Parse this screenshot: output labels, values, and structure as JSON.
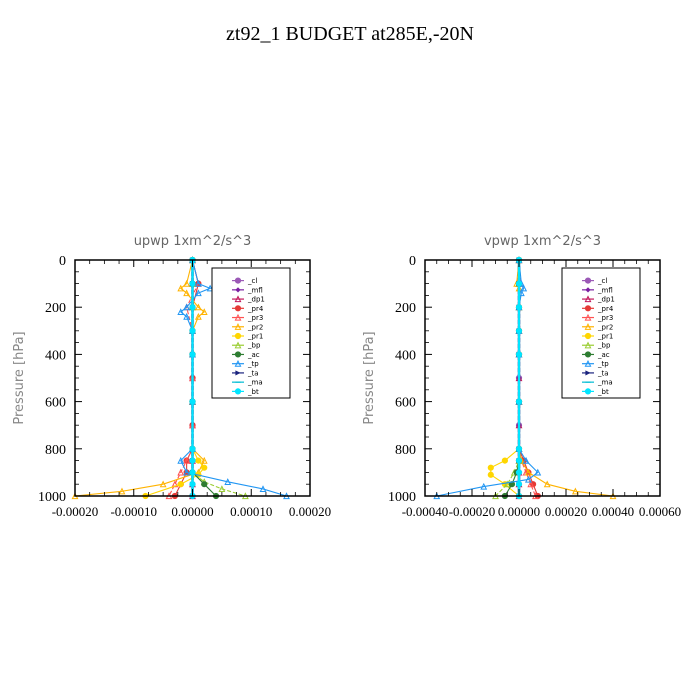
{
  "title": "zt92_1  BUDGET at285E,-20N",
  "legend_entries": [
    "_cl",
    "_mfl",
    "_dp1",
    "_pr4",
    "_pr3",
    "_pr2",
    "_pr1",
    "_bp",
    "_ac",
    "_tp",
    "_ta",
    "_ma",
    "_bt"
  ],
  "legend_colors": [
    "#9b59b6",
    "#7b1fa2",
    "#c2185b",
    "#e53935",
    "#ff5252",
    "#ffb300",
    "#ffd600",
    "#9acd32",
    "#2e7d32",
    "#2196f3",
    "#1a237e",
    "#00bcd4",
    "#00e5ff"
  ],
  "chart_data": [
    {
      "type": "line",
      "title": "upwp   1xm^2/s^3",
      "ylabel": "Pressure [hPa]",
      "xlabel": "",
      "xlim": [
        -0.0002,
        0.0002
      ],
      "ylim": [
        1000,
        0
      ],
      "xticks": [
        -0.0002,
        -0.0001,
        0.0,
        0.0001,
        0.0002
      ],
      "xtick_labels": [
        "-0.00020",
        "-0.00010",
        "0.00000",
        "0.00010",
        "0.00020"
      ],
      "yticks": [
        0,
        200,
        400,
        600,
        800,
        1000
      ],
      "ytick_labels": [
        "0",
        "200",
        "400",
        "600",
        "800",
        "1000"
      ],
      "legend_position": "top-right",
      "series": [
        {
          "name": "_cl",
          "p": [
            0,
            100,
            200,
            300,
            400,
            500,
            600,
            700,
            800,
            850,
            900,
            950,
            1000
          ],
          "values": [
            0,
            0,
            0,
            0,
            0,
            0,
            0,
            0,
            0,
            0,
            0,
            0,
            0
          ]
        },
        {
          "name": "_mfl",
          "p": [
            0,
            100,
            200,
            300,
            400,
            500,
            600,
            700,
            800,
            850,
            900,
            950,
            1000
          ],
          "values": [
            0,
            0,
            0,
            0,
            0,
            0,
            0,
            0,
            0,
            0,
            0,
            0,
            0
          ]
        },
        {
          "name": "_dp1",
          "p": [
            0,
            100,
            200,
            300,
            400,
            500,
            600,
            700,
            800,
            850,
            900,
            950,
            1000
          ],
          "values": [
            0,
            0,
            0,
            0,
            0,
            0,
            0,
            0,
            0,
            0,
            0,
            0,
            0
          ]
        },
        {
          "name": "_pr4",
          "p": [
            0,
            100,
            200,
            300,
            400,
            500,
            600,
            700,
            800,
            850,
            900,
            950,
            1000
          ],
          "values": [
            0,
            1e-05,
            0,
            0,
            0,
            0,
            0,
            0,
            0,
            -1e-05,
            -1e-05,
            -2e-05,
            -3e-05
          ]
        },
        {
          "name": "_pr3",
          "p": [
            0,
            100,
            200,
            300,
            400,
            500,
            600,
            700,
            800,
            850,
            900,
            950,
            1000
          ],
          "values": [
            0,
            1e-05,
            -1e-05,
            0,
            0,
            0,
            0,
            0,
            0,
            -1e-05,
            -2e-05,
            -3e-05,
            -4e-05
          ]
        },
        {
          "name": "_pr2",
          "p": [
            0,
            100,
            120,
            140,
            200,
            220,
            240,
            300,
            400,
            600,
            800,
            850,
            900,
            950,
            980,
            1000
          ],
          "values": [
            0,
            -1e-05,
            -2e-05,
            -1e-05,
            1e-05,
            2e-05,
            1e-05,
            0,
            0,
            0,
            0,
            2e-05,
            1e-05,
            -5e-05,
            -0.00012,
            -0.0002
          ]
        },
        {
          "name": "_pr1",
          "p": [
            0,
            100,
            200,
            300,
            400,
            600,
            800,
            850,
            880,
            910,
            950,
            1000
          ],
          "values": [
            0,
            0,
            0,
            0,
            0,
            0,
            0,
            1e-05,
            2e-05,
            1e-05,
            -2e-05,
            -8e-05
          ]
        },
        {
          "name": "_bp",
          "p": [
            0,
            100,
            200,
            300,
            400,
            600,
            800,
            900,
            940,
            970,
            1000
          ],
          "values": [
            0,
            0,
            0,
            0,
            0,
            0,
            0,
            0,
            2e-05,
            5e-05,
            9e-05
          ]
        },
        {
          "name": "_ac",
          "p": [
            0,
            100,
            200,
            300,
            400,
            600,
            800,
            900,
            950,
            1000
          ],
          "values": [
            0,
            0,
            0,
            0,
            0,
            0,
            0,
            0,
            2e-05,
            4e-05
          ]
        },
        {
          "name": "_tp",
          "p": [
            0,
            100,
            120,
            140,
            200,
            220,
            240,
            300,
            400,
            600,
            800,
            850,
            900,
            940,
            970,
            1000
          ],
          "values": [
            0,
            1e-05,
            3e-05,
            1e-05,
            -1e-05,
            -2e-05,
            -1e-05,
            0,
            0,
            0,
            0,
            -2e-05,
            -1e-05,
            6e-05,
            0.00012,
            0.00016
          ]
        },
        {
          "name": "_ta",
          "p": [
            0,
            100,
            200,
            300,
            400,
            600,
            800,
            850,
            900,
            950,
            1000
          ],
          "values": [
            0,
            0,
            0,
            0,
            0,
            0,
            0,
            0,
            0,
            0,
            0
          ]
        },
        {
          "name": "_ma",
          "p": [
            0,
            100,
            200,
            300,
            400,
            600,
            800,
            850,
            900,
            950,
            1000
          ],
          "values": [
            0,
            0,
            0,
            0,
            0,
            0,
            0,
            0,
            0,
            0,
            0
          ]
        },
        {
          "name": "_bt",
          "p": [
            0,
            100,
            200,
            300,
            400,
            600,
            800,
            850,
            900,
            950,
            1000
          ],
          "values": [
            0,
            0,
            0,
            0,
            0,
            0,
            0,
            0,
            0,
            0,
            0
          ]
        }
      ]
    },
    {
      "type": "line",
      "title": "vpwp   1xm^2/s^3",
      "ylabel": "Pressure [hPa]",
      "xlabel": "",
      "xlim": [
        -0.0004,
        0.0006
      ],
      "ylim": [
        1000,
        0
      ],
      "xticks": [
        -0.0004,
        -0.0002,
        0.0,
        0.0002,
        0.0004,
        0.0006
      ],
      "xtick_labels": [
        "-0.00040",
        "-0.00020",
        "0.00000",
        "0.00020",
        "0.00040",
        "0.00060"
      ],
      "yticks": [
        0,
        200,
        400,
        600,
        800,
        1000
      ],
      "ytick_labels": [
        "0",
        "200",
        "400",
        "600",
        "800",
        "1000"
      ],
      "legend_position": "top-right",
      "series": [
        {
          "name": "_cl",
          "p": [
            0,
            100,
            200,
            300,
            400,
            500,
            600,
            700,
            800,
            850,
            900,
            950,
            1000
          ],
          "values": [
            0,
            0,
            0,
            0,
            0,
            0,
            0,
            0,
            0,
            0,
            0,
            0,
            0
          ]
        },
        {
          "name": "_mfl",
          "p": [
            0,
            100,
            200,
            300,
            400,
            500,
            600,
            700,
            800,
            850,
            900,
            950,
            1000
          ],
          "values": [
            0,
            0,
            0,
            0,
            0,
            0,
            0,
            0,
            0,
            0,
            0,
            0,
            0
          ]
        },
        {
          "name": "_dp1",
          "p": [
            0,
            100,
            200,
            300,
            400,
            500,
            600,
            700,
            800,
            850,
            900,
            950,
            1000
          ],
          "values": [
            0,
            0,
            0,
            0,
            0,
            0,
            0,
            0,
            0,
            0,
            0,
            0,
            0
          ]
        },
        {
          "name": "_pr4",
          "p": [
            0,
            100,
            200,
            300,
            400,
            600,
            800,
            850,
            900,
            950,
            1000
          ],
          "values": [
            0,
            0,
            0,
            0,
            0,
            0,
            0,
            2e-05,
            4e-05,
            6e-05,
            8e-05
          ]
        },
        {
          "name": "_pr3",
          "p": [
            0,
            100,
            200,
            300,
            400,
            600,
            800,
            850,
            900,
            950,
            1000
          ],
          "values": [
            0,
            0,
            0,
            0,
            0,
            0,
            0,
            1e-05,
            3e-05,
            5e-05,
            7e-05
          ]
        },
        {
          "name": "_pr2",
          "p": [
            0,
            100,
            120,
            200,
            300,
            400,
            600,
            800,
            850,
            900,
            950,
            980,
            1000
          ],
          "values": [
            0,
            -1e-05,
            0,
            0,
            0,
            0,
            0,
            0,
            1e-05,
            4e-05,
            0.00012,
            0.00024,
            0.0004
          ]
        },
        {
          "name": "_pr1",
          "p": [
            0,
            100,
            200,
            300,
            400,
            600,
            800,
            850,
            880,
            910,
            950,
            1000
          ],
          "values": [
            0,
            0,
            0,
            0,
            0,
            0,
            0,
            -6e-05,
            -0.00012,
            -0.00012,
            -6e-05,
            0
          ]
        },
        {
          "name": "_bp",
          "p": [
            0,
            100,
            200,
            300,
            400,
            600,
            800,
            850,
            900,
            950,
            1000
          ],
          "values": [
            0,
            0,
            0,
            0,
            0,
            0,
            0,
            0,
            -2e-05,
            -5e-05,
            -0.0001
          ]
        },
        {
          "name": "_ac",
          "p": [
            0,
            100,
            200,
            300,
            400,
            600,
            800,
            850,
            900,
            950,
            1000
          ],
          "values": [
            0,
            0,
            0,
            0,
            0,
            0,
            0,
            0,
            -1e-05,
            -3e-05,
            -6e-05
          ]
        },
        {
          "name": "_tp",
          "p": [
            0,
            100,
            120,
            140,
            200,
            300,
            400,
            600,
            800,
            850,
            900,
            930,
            960,
            1000
          ],
          "values": [
            0,
            1e-05,
            2e-05,
            1e-05,
            0,
            0,
            0,
            0,
            0,
            3e-05,
            8e-05,
            4e-05,
            -0.00015,
            -0.00035
          ]
        },
        {
          "name": "_ta",
          "p": [
            0,
            100,
            200,
            300,
            400,
            600,
            800,
            850,
            900,
            950,
            1000
          ],
          "values": [
            0,
            0,
            0,
            0,
            0,
            0,
            0,
            0,
            0,
            0,
            0
          ]
        },
        {
          "name": "_ma",
          "p": [
            0,
            100,
            200,
            300,
            400,
            600,
            800,
            850,
            900,
            950,
            1000
          ],
          "values": [
            0,
            0,
            0,
            0,
            0,
            0,
            0,
            0,
            0,
            0,
            0
          ]
        },
        {
          "name": "_bt",
          "p": [
            0,
            100,
            200,
            300,
            400,
            600,
            800,
            850,
            900,
            950,
            1000
          ],
          "values": [
            0,
            0,
            0,
            0,
            0,
            0,
            0,
            0,
            0,
            0,
            0
          ]
        }
      ]
    }
  ]
}
